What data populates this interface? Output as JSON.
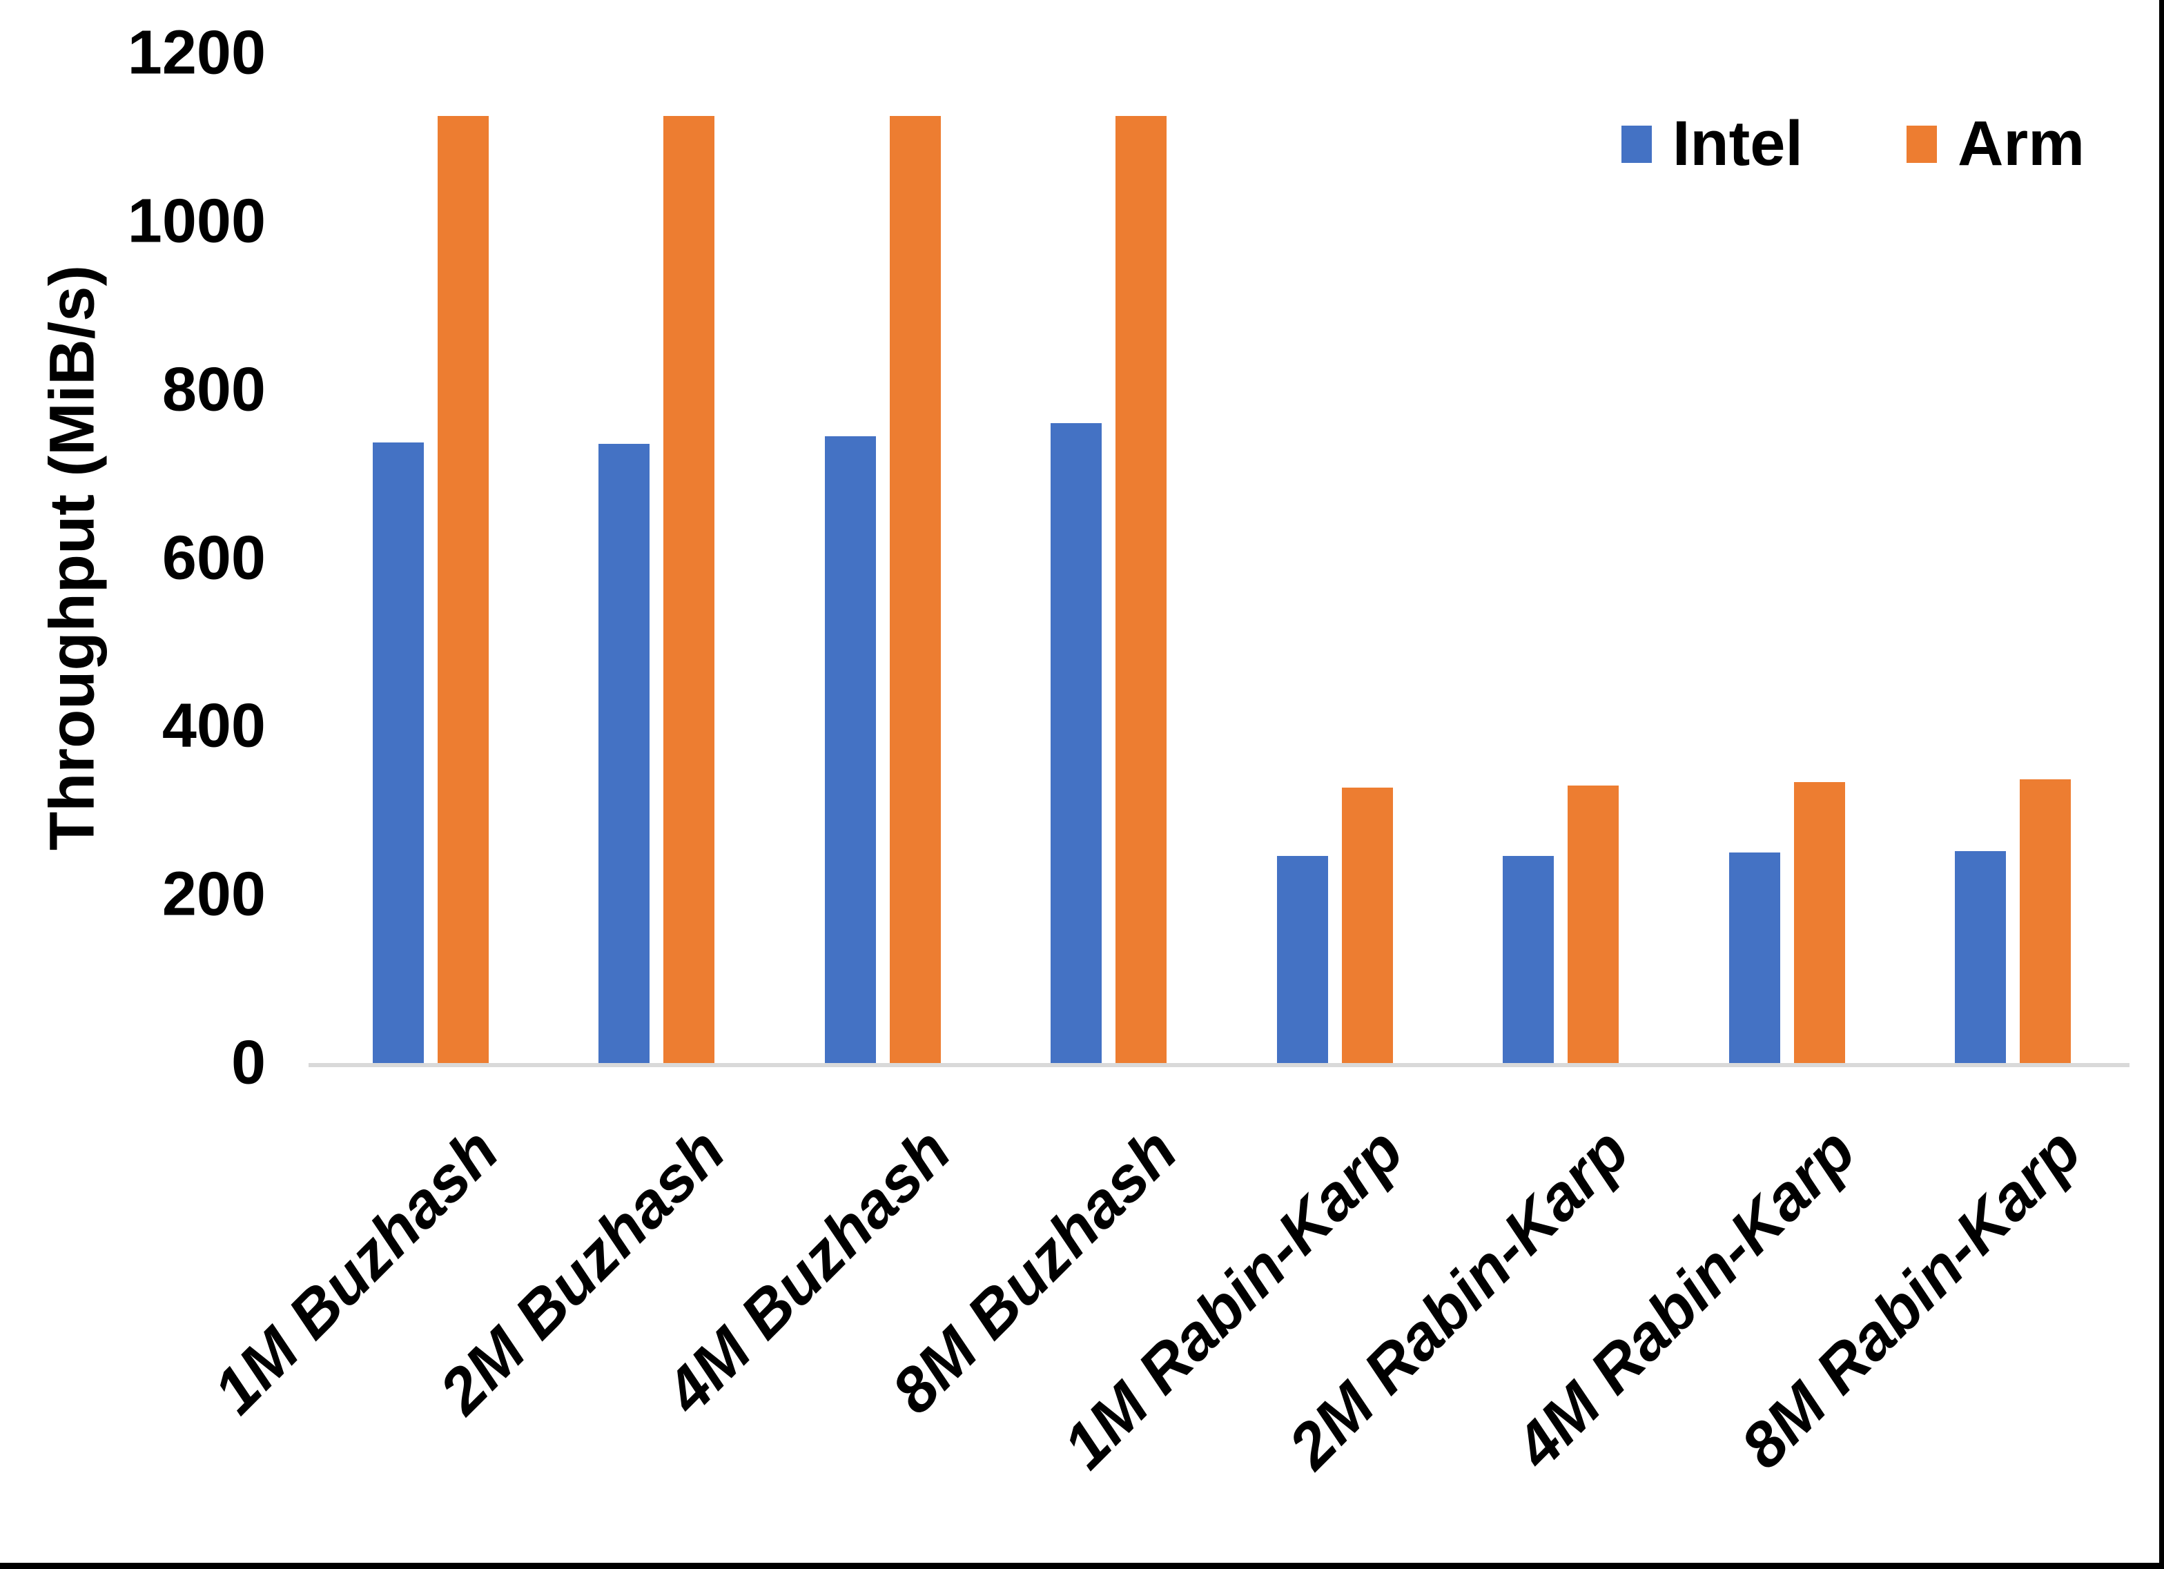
{
  "page": {
    "background": "#ffffff",
    "frame_color": "#000000"
  },
  "chart_data": {
    "type": "bar",
    "title": "",
    "xlabel": "",
    "ylabel": "Throughput (MiB/s)",
    "ylim": [
      0,
      1200
    ],
    "yticks": [
      0,
      200,
      400,
      600,
      800,
      1000,
      1200
    ],
    "grid": false,
    "axis_line_color": "#D9D9D9",
    "legend_position": "top-right",
    "categories": [
      "1M Buzhash",
      "2M Buzhash",
      "4M Buzhash",
      "8M Buzhash",
      "1M Rabin-Karp",
      "2M Rabin-Karp",
      "4M Rabin-Karp",
      "8M Rabin-Karp"
    ],
    "series": [
      {
        "name": "Intel",
        "color": "#4472C4",
        "values": [
          737,
          736,
          745,
          760,
          246,
          246,
          250,
          252
        ]
      },
      {
        "name": "Arm",
        "color": "#ED7D31",
        "values": [
          1125,
          1125,
          1125,
          1125,
          327,
          330,
          334,
          337
        ]
      }
    ]
  }
}
